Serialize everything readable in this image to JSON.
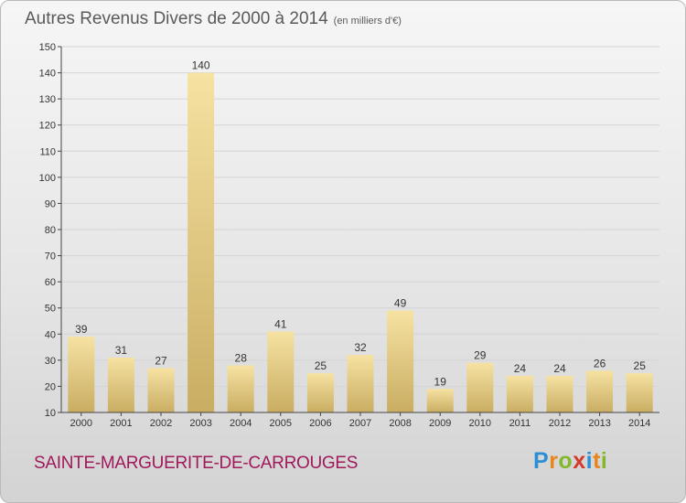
{
  "title": "Autres Revenus Divers de 2000 à 2014",
  "unit": "(en milliers d'€)",
  "commune": "SAINTE-MARGUERITE-DE-CARROUGES",
  "brand": [
    "P",
    "r",
    "o",
    "x",
    "i",
    "t",
    "i"
  ],
  "chart_data": {
    "type": "bar",
    "categories": [
      "2000",
      "2001",
      "2002",
      "2003",
      "2004",
      "2005",
      "2006",
      "2007",
      "2008",
      "2009",
      "2010",
      "2011",
      "2012",
      "2013",
      "2014"
    ],
    "values": [
      39,
      31,
      27,
      140,
      28,
      41,
      25,
      32,
      49,
      19,
      29,
      24,
      24,
      26,
      25
    ],
    "ylim": [
      10,
      150
    ],
    "yticks": [
      10,
      20,
      30,
      40,
      50,
      60,
      70,
      80,
      90,
      100,
      110,
      120,
      130,
      140,
      150
    ],
    "grid": true,
    "legend": "none",
    "colors": {
      "bar": "#e2c778",
      "bar_light": "#f6e2a2",
      "bar_dark": "#c9ad62",
      "axis": "#444444",
      "grid": "#d4d4d4",
      "label": "#333333"
    }
  }
}
